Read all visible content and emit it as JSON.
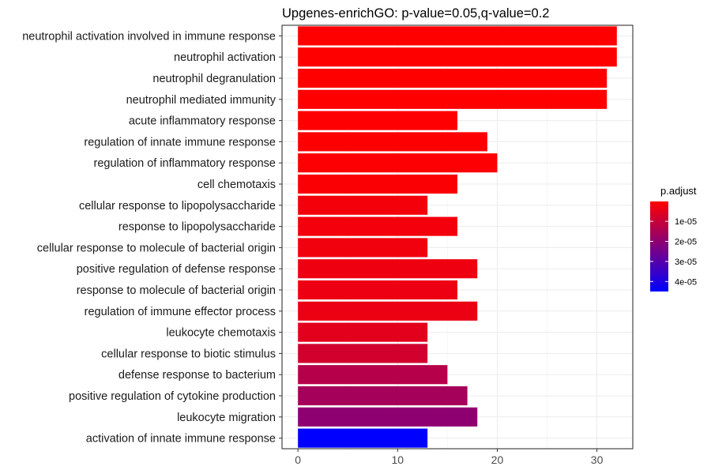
{
  "chart_data": {
    "type": "bar",
    "orientation": "horizontal",
    "title": "Upgenes-enrichGO: p-value=0.05,q-value=0.2",
    "xlabel": "",
    "ylabel": "",
    "xlim": [
      -1.6,
      33.6
    ],
    "x_ticks": [
      0,
      10,
      20,
      30
    ],
    "x_tick_labels": [
      "0",
      "10",
      "20",
      "30"
    ],
    "grid": true,
    "categories": [
      "neutrophil activation involved in immune response",
      "neutrophil activation",
      "neutrophil degranulation",
      "neutrophil mediated immunity",
      "acute inflammatory response",
      "regulation of innate immune response",
      "regulation of inflammatory response",
      "cell chemotaxis",
      "cellular response to lipopolysaccharide",
      "response to lipopolysaccharide",
      "cellular response to molecule of bacterial origin",
      "positive regulation of defense response",
      "response to molecule of bacterial origin",
      "regulation of immune effector process",
      "leukocyte chemotaxis",
      "cellular response to biotic stimulus",
      "defense response to bacterium",
      "positive regulation of cytokine production",
      "leukocyte migration",
      "activation of innate immune response"
    ],
    "values": [
      32,
      32,
      31,
      31,
      16,
      19,
      20,
      16,
      13,
      16,
      13,
      18,
      16,
      18,
      13,
      13,
      15,
      17,
      18,
      13
    ],
    "p_adjust": [
      1e-07,
      1e-07,
      1e-07,
      1e-07,
      3e-07,
      5e-07,
      6e-07,
      1e-06,
      2e-06,
      2.2e-06,
      2.5e-06,
      3e-06,
      3.2e-06,
      3.6e-06,
      5e-06,
      8e-06,
      1.3e-05,
      1.6e-05,
      2e-05,
      4.5e-05
    ],
    "legend": {
      "title": "p.adjust",
      "placement": "right",
      "min": 1e-07,
      "max": 4.5e-05,
      "ticks": [
        1e-05,
        2e-05,
        3e-05,
        4e-05
      ],
      "tick_labels": [
        "1e-05",
        "2e-05",
        "3e-05",
        "4e-05"
      ],
      "low_color": "#ff0000",
      "high_color": "#0000ff"
    }
  }
}
